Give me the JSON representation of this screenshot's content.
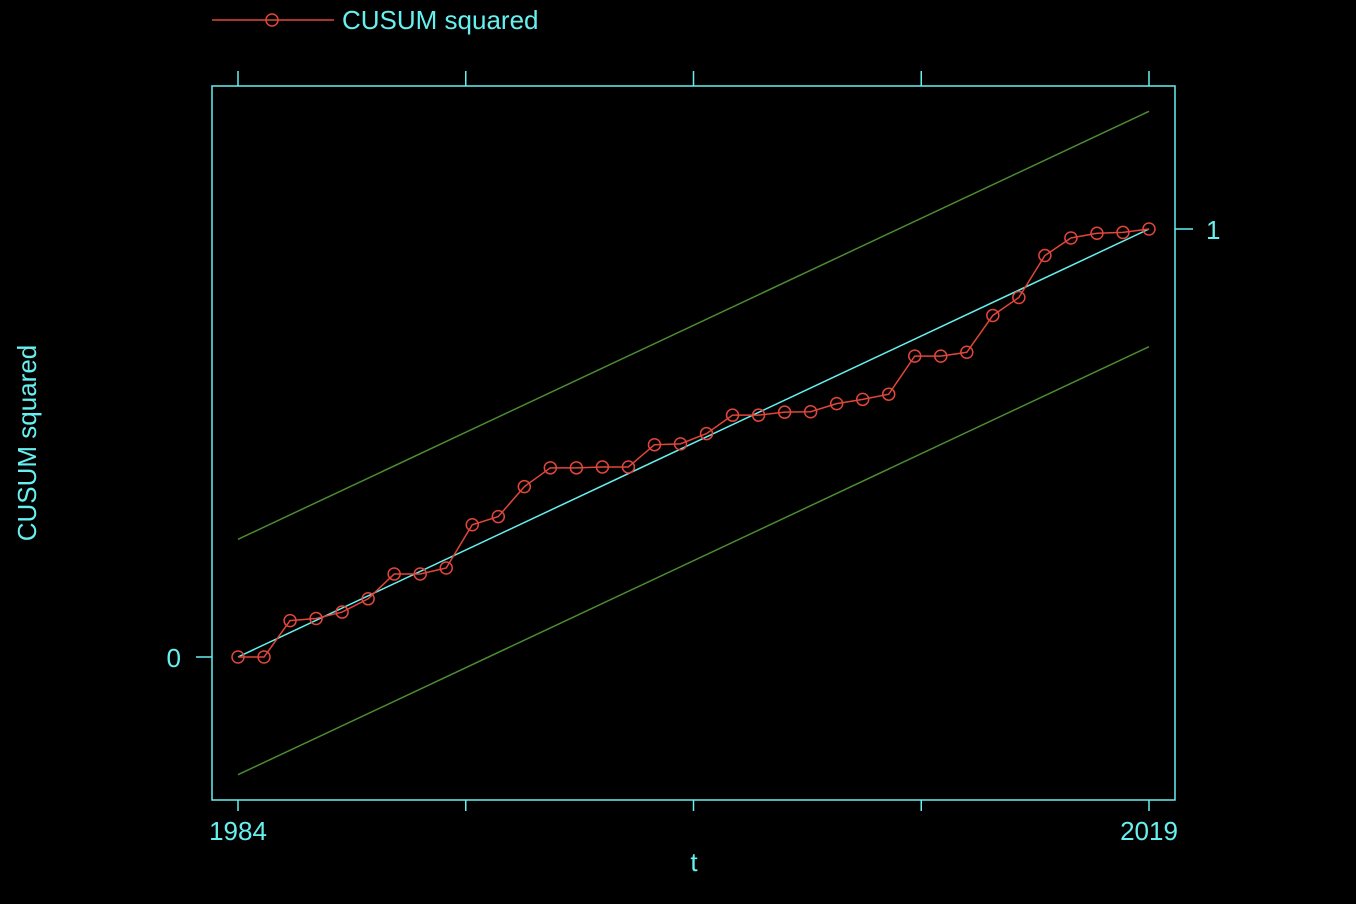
{
  "chart_data": {
    "type": "line",
    "xlabel": "t",
    "ylabel": "CUSUM squared",
    "xlim": [
      1984,
      2019
    ],
    "ylim": [
      0,
      1
    ],
    "x_ticks": [
      1984,
      1992.75,
      2001.5,
      2010.25,
      2019
    ],
    "x_tick_labels": [
      "1984",
      "",
      "",
      "",
      "2019"
    ],
    "y_ticks": [
      0,
      1
    ],
    "y_tick_labels": [
      "0",
      "1"
    ],
    "legend": {
      "position": "top-left",
      "label": "CUSUM squared"
    },
    "colors": {
      "background": "#000000",
      "axes": "#66f0f0",
      "series": "#e0463a",
      "reference": "#66f0f0",
      "bounds": "#4c8c32"
    },
    "series": [
      {
        "name": "CUSUM squared",
        "x": [
          1984,
          1985,
          1986,
          1987,
          1988,
          1989,
          1990,
          1991,
          1992,
          1993,
          1994,
          1995,
          1996,
          1997,
          1998,
          1999,
          2000,
          2001,
          2002,
          2003,
          2004,
          2005,
          2006,
          2007,
          2008,
          2009,
          2010,
          2011,
          2012,
          2013,
          2014,
          2015,
          2016,
          2017,
          2018,
          2019
        ],
        "values": [
          0.0,
          0.0,
          0.085,
          0.09,
          0.105,
          0.136,
          0.194,
          0.194,
          0.208,
          0.309,
          0.328,
          0.398,
          0.442,
          0.442,
          0.444,
          0.444,
          0.496,
          0.498,
          0.522,
          0.565,
          0.565,
          0.572,
          0.573,
          0.592,
          0.602,
          0.614,
          0.703,
          0.703,
          0.712,
          0.798,
          0.84,
          0.938,
          0.979,
          0.99,
          0.992,
          1.0
        ]
      }
    ],
    "reference_line": {
      "x": [
        1984,
        2019
      ],
      "values": [
        0,
        1
      ]
    },
    "bounds": {
      "upper": {
        "x": [
          1984,
          2019
        ],
        "values": [
          0.275,
          1.275
        ]
      },
      "lower": {
        "x": [
          1984,
          2019
        ],
        "values": [
          -0.275,
          0.725
        ]
      }
    }
  }
}
